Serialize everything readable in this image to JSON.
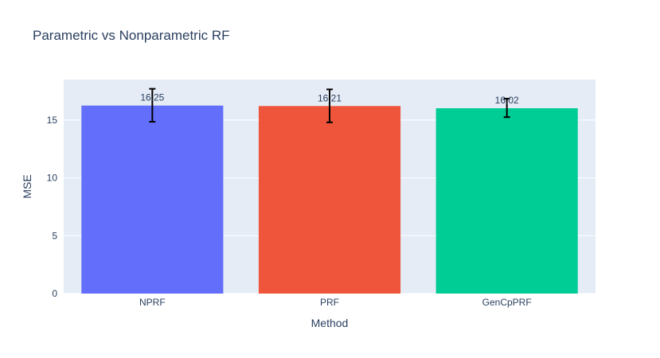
{
  "chart_data": {
    "type": "bar",
    "title": "Parametric vs Nonparametric RF",
    "xlabel": "Method",
    "ylabel": "MSE",
    "categories": [
      "NPRF",
      "PRF",
      "GenCpPRF"
    ],
    "values": [
      16.25,
      16.21,
      16.02
    ],
    "value_labels": [
      "16.25",
      "16.21",
      "16.02"
    ],
    "error_upper": [
      17.7,
      17.65,
      16.85
    ],
    "error_lower": [
      14.85,
      14.8,
      15.25
    ],
    "colors": [
      "#636efa",
      "#ef553b",
      "#00cc96"
    ],
    "ylim": [
      0,
      18.5
    ],
    "yticks": [
      0,
      5,
      10,
      15
    ],
    "ytick_labels": [
      "0",
      "5",
      "10",
      "15"
    ],
    "grid": true,
    "plot_background": "#e5ecf6"
  }
}
